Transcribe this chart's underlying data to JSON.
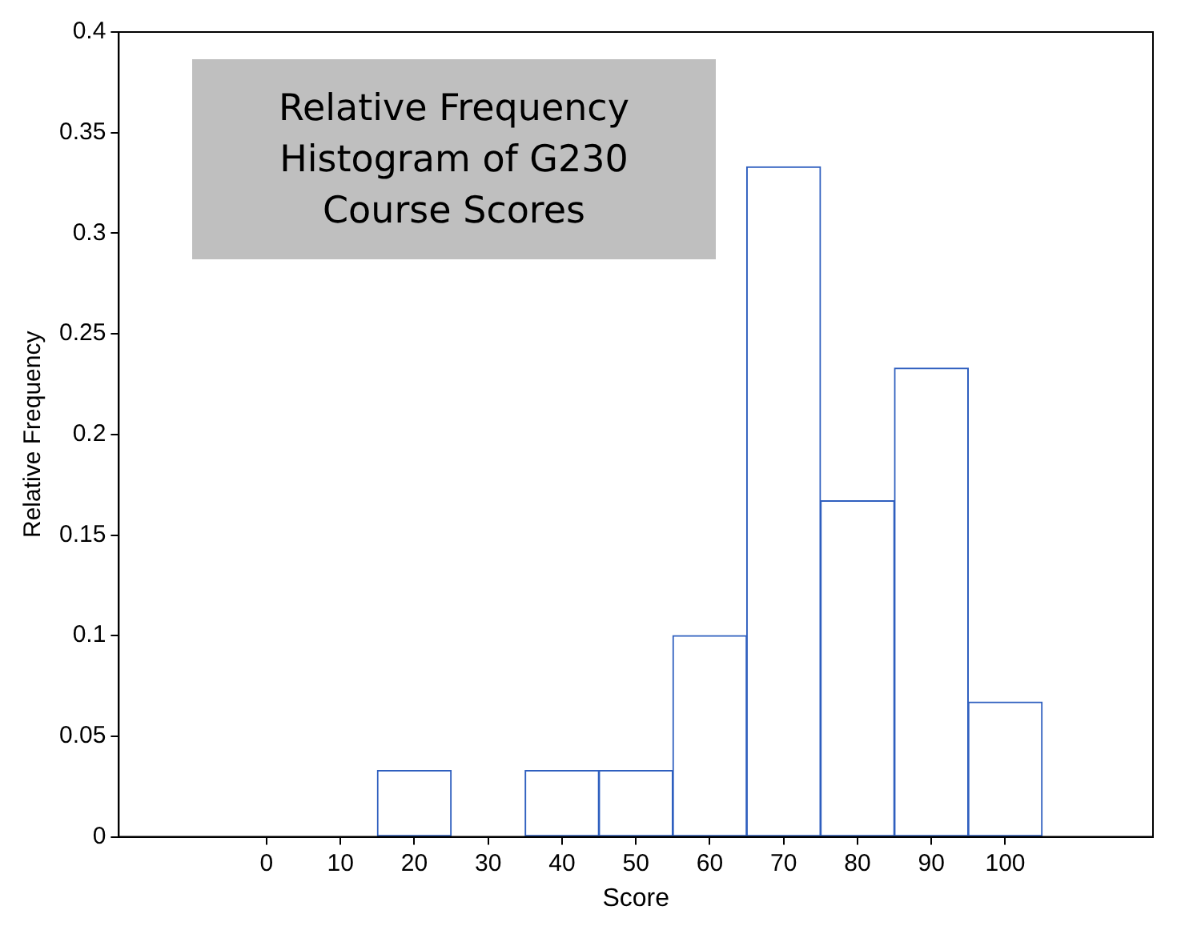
{
  "chart_data": {
    "type": "histogram",
    "title": "Relative Frequency Histogram of G230 Course Scores",
    "xlabel": "Score",
    "ylabel": "Relative Frequency",
    "bins": [
      -5,
      5,
      15,
      25,
      35,
      45,
      55,
      65,
      75,
      85,
      95,
      105
    ],
    "values": [
      0,
      0,
      0.033,
      0,
      0.033,
      0.033,
      0.1,
      0.333,
      0.167,
      0.233,
      0.067
    ],
    "color": "#ffffff",
    "xlim": [
      -20,
      120
    ],
    "xticks": [
      0,
      10,
      20,
      30,
      40,
      50,
      60,
      70,
      80,
      90,
      100
    ],
    "ylim": [
      0,
      0.4
    ],
    "yticks": [
      0,
      0.05,
      0.1,
      0.15,
      0.2,
      0.25,
      0.3,
      0.35,
      0.4
    ],
    "grid": false,
    "legend": false
  }
}
